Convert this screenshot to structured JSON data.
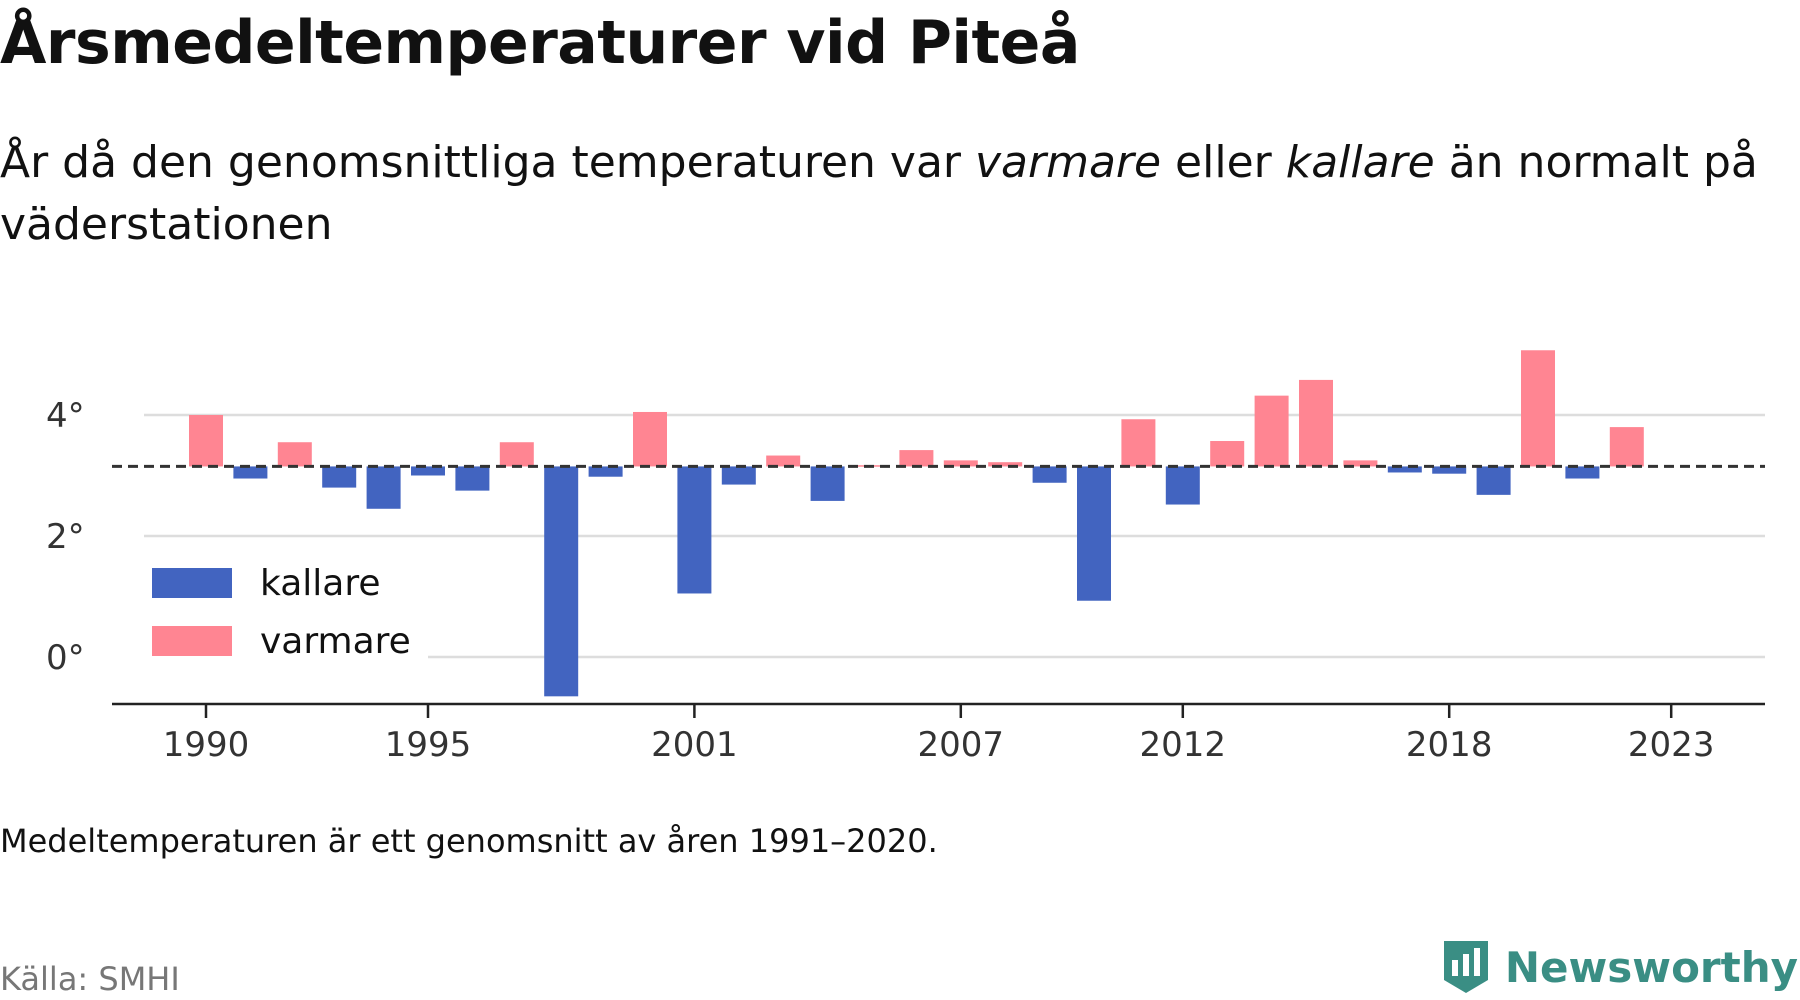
{
  "header": {
    "title": "Årsmedeltemperaturer vid Piteå",
    "subtitle_part1": "År då den genomsnittliga temperaturen var ",
    "subtitle_em1": "varmare",
    "subtitle_part2": " eller ",
    "subtitle_em2": "kallare",
    "subtitle_part3": " än normalt på väderstationen"
  },
  "footer": {
    "note": "Medeltemperaturen är ett genomsnitt av åren 1991–2020.",
    "source": "Källa: SMHI",
    "brand": "Newsworthy"
  },
  "colors": {
    "kallare": "#4264c0",
    "varmare": "#ff8592",
    "brand": "#3a8e84"
  },
  "chart_data": {
    "type": "bar",
    "baseline": 3.15,
    "ylim": [
      -0.8,
      5.5
    ],
    "yticks": [
      0,
      2,
      4
    ],
    "ytick_labels": [
      "0°",
      "2°",
      "4°"
    ],
    "xticks": [
      1990,
      1995,
      2001,
      2007,
      2012,
      2018,
      2023
    ],
    "xtick_labels": [
      "1990",
      "1995",
      "2001",
      "2007",
      "2012",
      "2018",
      "2023"
    ],
    "legend": {
      "placement": "lower-left",
      "items": [
        {
          "key": "kallare",
          "label": "kallare"
        },
        {
          "key": "varmare",
          "label": "varmare"
        }
      ]
    },
    "grid": true,
    "years": [
      1990,
      1991,
      1992,
      1993,
      1994,
      1995,
      1996,
      1997,
      1998,
      1999,
      2000,
      2001,
      2002,
      2003,
      2004,
      2005,
      2006,
      2007,
      2008,
      2009,
      2010,
      2011,
      2012,
      2013,
      2014,
      2015,
      2016,
      2017,
      2018,
      2019,
      2020,
      2021,
      2022
    ],
    "values": [
      4.0,
      2.95,
      3.55,
      2.8,
      2.45,
      3.0,
      2.75,
      3.55,
      -0.65,
      2.98,
      4.05,
      1.05,
      2.85,
      3.33,
      2.58,
      3.17,
      3.42,
      3.25,
      3.22,
      2.88,
      0.93,
      3.93,
      2.52,
      3.57,
      4.32,
      4.58,
      3.25,
      3.05,
      3.03,
      2.68,
      5.07,
      2.95,
      3.8
    ]
  }
}
